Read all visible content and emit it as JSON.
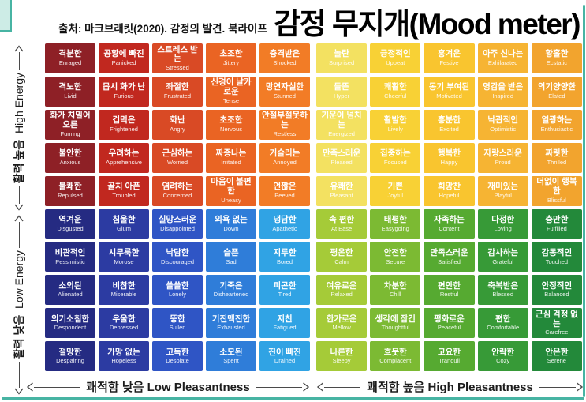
{
  "frame": {
    "border_color": "#47b4a3",
    "corner_fill": "#cdece6"
  },
  "header": {
    "title": "감정 무지개(Mood meter)",
    "source": "출처: 마크브래킷(2020). 감정의 발견. 북라이프"
  },
  "axes": {
    "y_top": {
      "ko": "활력 높음",
      "en": "High Energy"
    },
    "y_bottom": {
      "ko": "활력 낮음",
      "en": "Low Energy"
    },
    "x_left": {
      "ko": "쾌적함 낮음",
      "en": "Low Pleasantness"
    },
    "x_right": {
      "ko": "쾌적함 높음",
      "en": "High Pleasantness"
    }
  },
  "chart_data": {
    "type": "heatmap",
    "title": "감정 무지개(Mood meter)",
    "source": "출처: 마크브래킷(2020). 감정의 발견. 북라이프",
    "x_axis": {
      "left_label": "쾌적함 낮음 Low Pleasantness",
      "right_label": "쾌적함 높음 High Pleasantness"
    },
    "y_axis": {
      "top_label": "활력 높음 High Energy",
      "bottom_label": "활력 낮음 Low Energy"
    },
    "quadrants": {
      "top_left": "red",
      "top_right": "yellow",
      "bottom_left": "blue",
      "bottom_right": "green"
    },
    "column_colors": {
      "red": [
        "#8e2026",
        "#c1281f",
        "#d94a25",
        "#ea6423",
        "#f27c26"
      ],
      "yellow": [
        "#f3e161",
        "#f8d135",
        "#f9c52f",
        "#f6b433",
        "#f2a42e"
      ],
      "blue": [
        "#252b82",
        "#2c3ba2",
        "#2f55c5",
        "#2f7dd9",
        "#30a3e4"
      ],
      "green": [
        "#a5cb38",
        "#7cba33",
        "#56aa31",
        "#379a37",
        "#23893a"
      ]
    },
    "cells": [
      [
        {
          "ko": "격분한",
          "en": "Enraged"
        },
        {
          "ko": "공황에 빠진",
          "en": "Panicked"
        },
        {
          "ko": "스트레스 받는",
          "en": "Stressed"
        },
        {
          "ko": "초조한",
          "en": "Jittery"
        },
        {
          "ko": "충격받은",
          "en": "Shocked"
        },
        {
          "ko": "놀란",
          "en": "Surprised"
        },
        {
          "ko": "긍정적인",
          "en": "Upbeat"
        },
        {
          "ko": "흥겨운",
          "en": "Festive"
        },
        {
          "ko": "아주 신나는",
          "en": "Exhilarated"
        },
        {
          "ko": "황홀한",
          "en": "Ecstatic"
        }
      ],
      [
        {
          "ko": "격노한",
          "en": "Livid"
        },
        {
          "ko": "몹시 화가 난",
          "en": "Furious"
        },
        {
          "ko": "좌절한",
          "en": "Frustrated"
        },
        {
          "ko": "신경이 날카로운",
          "en": "Tense"
        },
        {
          "ko": "망연자실한",
          "en": "Stunned"
        },
        {
          "ko": "들뜬",
          "en": "Hyper"
        },
        {
          "ko": "쾌활한",
          "en": "Cheerful"
        },
        {
          "ko": "동기 부여된",
          "en": "Motivated"
        },
        {
          "ko": "영감을 받은",
          "en": "Inspired"
        },
        {
          "ko": "의기양양한",
          "en": "Elated"
        }
      ],
      [
        {
          "ko": "화가 치밀어 오른",
          "en": "Fuming"
        },
        {
          "ko": "겁먹은",
          "en": "Frightened"
        },
        {
          "ko": "화난",
          "en": "Angry"
        },
        {
          "ko": "초조한",
          "en": "Nervous"
        },
        {
          "ko": "안절부절못하는",
          "en": "Restless"
        },
        {
          "ko": "기운이 넘치는",
          "en": "Energized"
        },
        {
          "ko": "활발한",
          "en": "Lively"
        },
        {
          "ko": "흥분한",
          "en": "Excited"
        },
        {
          "ko": "낙관적인",
          "en": "Optimistic"
        },
        {
          "ko": "열광하는",
          "en": "Enthusiastic"
        }
      ],
      [
        {
          "ko": "불안한",
          "en": "Anxious"
        },
        {
          "ko": "우려하는",
          "en": "Apprehensive"
        },
        {
          "ko": "근심하는",
          "en": "Worried"
        },
        {
          "ko": "짜증나는",
          "en": "Irritated"
        },
        {
          "ko": "거슬리는",
          "en": "Annoyed"
        },
        {
          "ko": "만족스러운",
          "en": "Pleased"
        },
        {
          "ko": "집중하는",
          "en": "Focused"
        },
        {
          "ko": "행복한",
          "en": "Happy"
        },
        {
          "ko": "자랑스러운",
          "en": "Proud"
        },
        {
          "ko": "짜릿한",
          "en": "Thrilled"
        }
      ],
      [
        {
          "ko": "불쾌한",
          "en": "Repulsed"
        },
        {
          "ko": "골치 아픈",
          "en": "Troubled"
        },
        {
          "ko": "염려하는",
          "en": "Concerned"
        },
        {
          "ko": "마음이 불편한",
          "en": "Uneasy"
        },
        {
          "ko": "언짢은",
          "en": "Peeved"
        },
        {
          "ko": "유쾌한",
          "en": "Pleasant"
        },
        {
          "ko": "기쁜",
          "en": "Joyful"
        },
        {
          "ko": "희망찬",
          "en": "Hopeful"
        },
        {
          "ko": "재미있는",
          "en": "Playful"
        },
        {
          "ko": "더없이 행복한",
          "en": "Blissful"
        }
      ],
      [
        {
          "ko": "역겨운",
          "en": "Disgusted"
        },
        {
          "ko": "침울한",
          "en": "Glum"
        },
        {
          "ko": "실망스러운",
          "en": "Disappointed"
        },
        {
          "ko": "의욕 없는",
          "en": "Down"
        },
        {
          "ko": "냉담한",
          "en": "Apathetic"
        },
        {
          "ko": "속 편한",
          "en": "At Ease"
        },
        {
          "ko": "태평한",
          "en": "Easygoing"
        },
        {
          "ko": "자족하는",
          "en": "Content"
        },
        {
          "ko": "다정한",
          "en": "Loving"
        },
        {
          "ko": "충만한",
          "en": "Fulfilled"
        }
      ],
      [
        {
          "ko": "비관적인",
          "en": "Pessimistic"
        },
        {
          "ko": "시무룩한",
          "en": "Morose"
        },
        {
          "ko": "낙담한",
          "en": "Discouraged"
        },
        {
          "ko": "슬픈",
          "en": "Sad"
        },
        {
          "ko": "지루한",
          "en": "Bored"
        },
        {
          "ko": "평온한",
          "en": "Calm"
        },
        {
          "ko": "안전한",
          "en": "Secure"
        },
        {
          "ko": "만족스러운",
          "en": "Satisfied"
        },
        {
          "ko": "감사하는",
          "en": "Grateful"
        },
        {
          "ko": "감동적인",
          "en": "Touched"
        }
      ],
      [
        {
          "ko": "소외된",
          "en": "Alienated"
        },
        {
          "ko": "비참한",
          "en": "Miserable"
        },
        {
          "ko": "쓸쓸한",
          "en": "Lonely"
        },
        {
          "ko": "기죽은",
          "en": "Disheartened"
        },
        {
          "ko": "피곤한",
          "en": "Tired"
        },
        {
          "ko": "여유로운",
          "en": "Relaxed"
        },
        {
          "ko": "차분한",
          "en": "Chill"
        },
        {
          "ko": "편안한",
          "en": "Restful"
        },
        {
          "ko": "축복받은",
          "en": "Blessed"
        },
        {
          "ko": "안정적인",
          "en": "Balanced"
        }
      ],
      [
        {
          "ko": "의기소침한",
          "en": "Despondent"
        },
        {
          "ko": "우울한",
          "en": "Depressed"
        },
        {
          "ko": "뚱한",
          "en": "Sullen"
        },
        {
          "ko": "기진맥진한",
          "en": "Exhausted"
        },
        {
          "ko": "지친",
          "en": "Fatigued"
        },
        {
          "ko": "한가로운",
          "en": "Mellow"
        },
        {
          "ko": "생각에 잠긴",
          "en": "Thoughtful"
        },
        {
          "ko": "평화로운",
          "en": "Peaceful"
        },
        {
          "ko": "편한",
          "en": "Comfortable"
        },
        {
          "ko": "근심 걱정 없는",
          "en": "Carefree"
        }
      ],
      [
        {
          "ko": "절망한",
          "en": "Despairing"
        },
        {
          "ko": "가망 없는",
          "en": "Hopeless"
        },
        {
          "ko": "고독한",
          "en": "Desolate"
        },
        {
          "ko": "소모된",
          "en": "Spent"
        },
        {
          "ko": "진이 빠진",
          "en": "Drained"
        },
        {
          "ko": "나른한",
          "en": "Sleepy"
        },
        {
          "ko": "흐뭇한",
          "en": "Complacent"
        },
        {
          "ko": "고요한",
          "en": "Tranquil"
        },
        {
          "ko": "안락한",
          "en": "Cozy"
        },
        {
          "ko": "안온한",
          "en": "Serene"
        }
      ]
    ]
  }
}
